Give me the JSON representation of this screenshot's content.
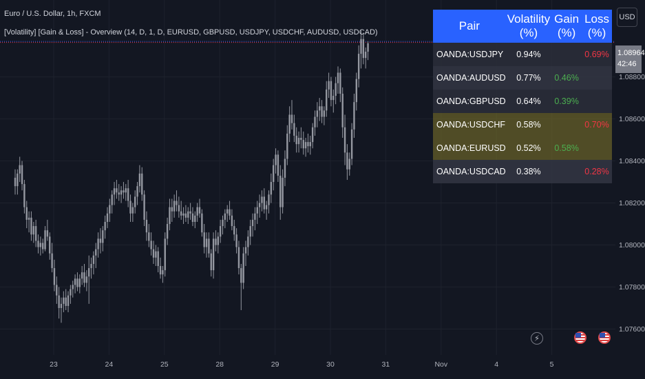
{
  "header": {
    "symbol_title": "Euro / U.S. Dollar, 1h, FXCM",
    "indicator_title": "[Volatility] [Gain & Loss] - Overview (14, D, 1, D, EURUSD, GBPUSD, USDJPY, USDCHF, AUDUSD, USDCAD)"
  },
  "currency_button": "USD",
  "price_tag": {
    "price": "1.08964",
    "countdown": "42:46"
  },
  "colors": {
    "background": "#131722",
    "candle": "#9598a1",
    "table_header": "#2962ff",
    "gain": "#4caf50",
    "loss": "#f23645",
    "highlight_row": "#766d28"
  },
  "table": {
    "headers": [
      "Pair",
      "Volatility (%)",
      "Gain (%)",
      "Loss (%)"
    ],
    "rows": [
      {
        "pair": "OANDA:USDJPY",
        "volatility": "0.94%",
        "gain": "",
        "loss": "0.69%",
        "highlight": false
      },
      {
        "pair": "OANDA:AUDUSD",
        "volatility": "0.77%",
        "gain": "0.46%",
        "loss": "",
        "highlight": false
      },
      {
        "pair": "OANDA:GBPUSD",
        "volatility": "0.64%",
        "gain": "0.39%",
        "loss": "",
        "highlight": false
      },
      {
        "pair": "OANDA:USDCHF",
        "volatility": "0.58%",
        "gain": "",
        "loss": "0.70%",
        "highlight": true
      },
      {
        "pair": "OANDA:EURUSD",
        "volatility": "0.52%",
        "gain": "0.58%",
        "loss": "",
        "highlight": true
      },
      {
        "pair": "OANDA:USDCAD",
        "volatility": "0.38%",
        "gain": "",
        "loss": "0.28%",
        "highlight": false
      }
    ]
  },
  "bottom_icons": [
    "lightning-icon",
    "us-flag-icon",
    "us-flag-icon"
  ],
  "chart_data": {
    "type": "candlestick",
    "ylim": [
      1.075,
      1.0912
    ],
    "y_ticks": [
      "1.08800",
      "1.08600",
      "1.08400",
      "1.08200",
      "1.08000",
      "1.07800",
      "1.07600"
    ],
    "y_tick_values": [
      1.088,
      1.086,
      1.084,
      1.082,
      1.08,
      1.078,
      1.076
    ],
    "x_ticks": [
      "23",
      "24",
      "25",
      "28",
      "29",
      "30",
      "31",
      "Nov",
      "4",
      "5"
    ],
    "x_tick_index": [
      0,
      24,
      48,
      72,
      96,
      120,
      144,
      168,
      192,
      216
    ],
    "last_price": 1.08964,
    "grid": true,
    "candles": [
      [
        1.0832,
        1.0836,
        1.0824,
        1.0828
      ],
      [
        1.0828,
        1.0836,
        1.0824,
        1.0834
      ],
      [
        1.0834,
        1.0842,
        1.083,
        1.0838
      ],
      [
        1.0838,
        1.084,
        1.0826,
        1.0829
      ],
      [
        1.0829,
        1.0831,
        1.0815,
        1.0818
      ],
      [
        1.0818,
        1.0821,
        1.0808,
        1.0812
      ],
      [
        1.0812,
        1.0816,
        1.0806,
        1.0813
      ],
      [
        1.0813,
        1.0816,
        1.0802,
        1.0805
      ],
      [
        1.0805,
        1.0811,
        1.0801,
        1.0809
      ],
      [
        1.0809,
        1.0812,
        1.0799,
        1.0802
      ],
      [
        1.0802,
        1.0805,
        1.0796,
        1.0799
      ],
      [
        1.0799,
        1.0804,
        1.0795,
        1.0801
      ],
      [
        1.0801,
        1.0803,
        1.0796,
        1.0798
      ],
      [
        1.0798,
        1.0809,
        1.0797,
        1.0807
      ],
      [
        1.0807,
        1.0812,
        1.0802,
        1.0804
      ],
      [
        1.0804,
        1.0806,
        1.0793,
        1.0796
      ],
      [
        1.0796,
        1.0801,
        1.0787,
        1.0789
      ],
      [
        1.0789,
        1.0793,
        1.0778,
        1.0781
      ],
      [
        1.0781,
        1.0785,
        1.0772,
        1.0776
      ],
      [
        1.0776,
        1.078,
        1.0765,
        1.077
      ],
      [
        1.077,
        1.0775,
        1.0763,
        1.0772
      ],
      [
        1.0772,
        1.0778,
        1.0768,
        1.0775
      ],
      [
        1.0775,
        1.0779,
        1.0769,
        1.0771
      ],
      [
        1.0771,
        1.0778,
        1.0768,
        1.0776
      ],
      [
        1.0776,
        1.0781,
        1.0772,
        1.0779
      ],
      [
        1.0779,
        1.0783,
        1.0775,
        1.0781
      ],
      [
        1.0781,
        1.0786,
        1.0777,
        1.0784
      ],
      [
        1.0784,
        1.0787,
        1.0778,
        1.078
      ],
      [
        1.078,
        1.0786,
        1.0777,
        1.0784
      ],
      [
        1.0784,
        1.079,
        1.0781,
        1.0787
      ],
      [
        1.0787,
        1.0791,
        1.078,
        1.0782
      ],
      [
        1.0782,
        1.0788,
        1.0778,
        1.0785
      ],
      [
        1.0785,
        1.0795,
        1.0772,
        1.0789
      ],
      [
        1.0789,
        1.0794,
        1.0784,
        1.0791
      ],
      [
        1.0791,
        1.0797,
        1.0786,
        1.0795
      ],
      [
        1.0795,
        1.0801,
        1.0789,
        1.0798
      ],
      [
        1.0798,
        1.0806,
        1.0794,
        1.0803
      ],
      [
        1.0803,
        1.0808,
        1.0796,
        1.0801
      ],
      [
        1.0801,
        1.0809,
        1.0797,
        1.0807
      ],
      [
        1.0807,
        1.0814,
        1.0803,
        1.0811
      ],
      [
        1.0811,
        1.0818,
        1.0808,
        1.0815
      ],
      [
        1.0815,
        1.0822,
        1.0811,
        1.0819
      ],
      [
        1.0819,
        1.0826,
        1.0815,
        1.0824
      ],
      [
        1.0824,
        1.083,
        1.0819,
        1.0827
      ],
      [
        1.0827,
        1.0831,
        1.0822,
        1.0825
      ],
      [
        1.0825,
        1.0829,
        1.0821,
        1.0824
      ],
      [
        1.0824,
        1.0828,
        1.082,
        1.0826
      ],
      [
        1.0826,
        1.083,
        1.0822,
        1.0825
      ],
      [
        1.0825,
        1.0829,
        1.0821,
        1.0827
      ],
      [
        1.0827,
        1.0831,
        1.0818,
        1.0821
      ],
      [
        1.0821,
        1.0824,
        1.0811,
        1.0815
      ],
      [
        1.0815,
        1.082,
        1.0811,
        1.0818
      ],
      [
        1.0818,
        1.0826,
        1.0815,
        1.0823
      ],
      [
        1.0823,
        1.083,
        1.0819,
        1.0828
      ],
      [
        1.0828,
        1.0838,
        1.0825,
        1.0834
      ],
      [
        1.0834,
        1.0837,
        1.0821,
        1.0824
      ],
      [
        1.0824,
        1.0826,
        1.0809,
        1.0812
      ],
      [
        1.0812,
        1.0816,
        1.0802,
        1.0806
      ],
      [
        1.0806,
        1.081,
        1.0799,
        1.0802
      ],
      [
        1.0802,
        1.0806,
        1.0795,
        1.0798
      ],
      [
        1.0798,
        1.0802,
        1.0791,
        1.0794
      ],
      [
        1.0794,
        1.08,
        1.079,
        1.0797
      ],
      [
        1.0797,
        1.0799,
        1.0787,
        1.079
      ],
      [
        1.079,
        1.0794,
        1.0784,
        1.0786
      ],
      [
        1.0786,
        1.079,
        1.0782,
        1.0788
      ],
      [
        1.0788,
        1.0806,
        1.0785,
        1.0803
      ],
      [
        1.0803,
        1.0813,
        1.08,
        1.081
      ],
      [
        1.081,
        1.0822,
        1.0807,
        1.0818
      ],
      [
        1.0818,
        1.0822,
        1.0811,
        1.0816
      ],
      [
        1.0816,
        1.0824,
        1.0813,
        1.0821
      ],
      [
        1.0821,
        1.0826,
        1.0816,
        1.0819
      ],
      [
        1.0819,
        1.0823,
        1.0813,
        1.0816
      ],
      [
        1.0816,
        1.0821,
        1.0812,
        1.0814
      ],
      [
        1.0814,
        1.0818,
        1.081,
        1.0815
      ],
      [
        1.0815,
        1.0819,
        1.0811,
        1.0813
      ],
      [
        1.0813,
        1.0818,
        1.081,
        1.0816
      ],
      [
        1.0816,
        1.082,
        1.0812,
        1.0815
      ],
      [
        1.0815,
        1.0818,
        1.0809,
        1.0811
      ],
      [
        1.0811,
        1.0816,
        1.0808,
        1.0814
      ],
      [
        1.0814,
        1.082,
        1.0811,
        1.0818
      ],
      [
        1.0818,
        1.0822,
        1.0813,
        1.0815
      ],
      [
        1.0815,
        1.0817,
        1.0804,
        1.0806
      ],
      [
        1.0806,
        1.081,
        1.0796,
        1.0799
      ],
      [
        1.0799,
        1.0806,
        1.0794,
        1.0803
      ],
      [
        1.0803,
        1.0806,
        1.0794,
        1.0796
      ],
      [
        1.0796,
        1.0798,
        1.0785,
        1.0788
      ],
      [
        1.0788,
        1.0806,
        1.0784,
        1.0803
      ],
      [
        1.0803,
        1.0807,
        1.0797,
        1.08
      ],
      [
        1.08,
        1.0806,
        1.0796,
        1.0804
      ],
      [
        1.0804,
        1.0812,
        1.0801,
        1.0809
      ],
      [
        1.0809,
        1.0814,
        1.0805,
        1.0812
      ],
      [
        1.0812,
        1.0817,
        1.0808,
        1.0815
      ],
      [
        1.0815,
        1.0819,
        1.0811,
        1.0817
      ],
      [
        1.0817,
        1.0821,
        1.0812,
        1.0814
      ],
      [
        1.0814,
        1.0817,
        1.0807,
        1.0809
      ],
      [
        1.0809,
        1.0812,
        1.0802,
        1.0805
      ],
      [
        1.0805,
        1.0808,
        1.0796,
        1.0799
      ],
      [
        1.0799,
        1.0802,
        1.0786,
        1.0789
      ],
      [
        1.0789,
        1.0791,
        1.0769,
        1.0782
      ],
      [
        1.0782,
        1.0799,
        1.0779,
        1.0796
      ],
      [
        1.0796,
        1.0802,
        1.079,
        1.0799
      ],
      [
        1.0799,
        1.0807,
        1.0795,
        1.0804
      ],
      [
        1.0804,
        1.0812,
        1.08,
        1.0809
      ],
      [
        1.0809,
        1.0815,
        1.0804,
        1.0812
      ],
      [
        1.0812,
        1.0818,
        1.0807,
        1.0815
      ],
      [
        1.0815,
        1.0821,
        1.081,
        1.0818
      ],
      [
        1.0818,
        1.0824,
        1.0813,
        1.082
      ],
      [
        1.082,
        1.0826,
        1.0816,
        1.0823
      ],
      [
        1.0823,
        1.0827,
        1.0815,
        1.0817
      ],
      [
        1.0817,
        1.0821,
        1.0812,
        1.0819
      ],
      [
        1.0819,
        1.0826,
        1.0815,
        1.0824
      ],
      [
        1.0824,
        1.0834,
        1.082,
        1.083
      ],
      [
        1.083,
        1.0841,
        1.0826,
        1.0838
      ],
      [
        1.0838,
        1.0846,
        1.0834,
        1.0843
      ],
      [
        1.0843,
        1.0845,
        1.083,
        1.0833
      ],
      [
        1.0833,
        1.0838,
        1.0812,
        1.0818
      ],
      [
        1.0818,
        1.0836,
        1.0815,
        1.0832
      ],
      [
        1.0832,
        1.0845,
        1.0828,
        1.0841
      ],
      [
        1.0841,
        1.0857,
        1.0838,
        1.0853
      ],
      [
        1.0853,
        1.0866,
        1.0849,
        1.0862
      ],
      [
        1.0862,
        1.0869,
        1.0855,
        1.0858
      ],
      [
        1.0858,
        1.0862,
        1.0849,
        1.0852
      ],
      [
        1.0852,
        1.0856,
        1.0844,
        1.0848
      ],
      [
        1.0848,
        1.0854,
        1.0844,
        1.0851
      ],
      [
        1.0851,
        1.0856,
        1.0846,
        1.085
      ],
      [
        1.085,
        1.0854,
        1.0843,
        1.0846
      ],
      [
        1.0846,
        1.0851,
        1.0842,
        1.0849
      ],
      [
        1.0849,
        1.0853,
        1.0844,
        1.0847
      ],
      [
        1.0847,
        1.0852,
        1.0843,
        1.0849
      ],
      [
        1.0849,
        1.0858,
        1.0846,
        1.0856
      ],
      [
        1.0856,
        1.0864,
        1.0852,
        1.0861
      ],
      [
        1.0861,
        1.0868,
        1.0856,
        1.0864
      ],
      [
        1.0864,
        1.087,
        1.0859,
        1.0866
      ],
      [
        1.0866,
        1.0869,
        1.0858,
        1.0861
      ],
      [
        1.0861,
        1.0866,
        1.0857,
        1.0864
      ],
      [
        1.0864,
        1.0878,
        1.0861,
        1.0874
      ],
      [
        1.0874,
        1.0882,
        1.087,
        1.0878
      ],
      [
        1.0878,
        1.088,
        1.0866,
        1.0869
      ],
      [
        1.0869,
        1.0874,
        1.0863,
        1.0871
      ],
      [
        1.0871,
        1.088,
        1.0867,
        1.0877
      ],
      [
        1.0877,
        1.0885,
        1.0872,
        1.0882
      ],
      [
        1.0882,
        1.0884,
        1.0868,
        1.0872
      ],
      [
        1.0872,
        1.0875,
        1.0851,
        1.0856
      ],
      [
        1.0856,
        1.0862,
        1.0838,
        1.0844
      ],
      [
        1.0844,
        1.0848,
        1.0831,
        1.0836
      ],
      [
        1.0836,
        1.0844,
        1.0833,
        1.0841
      ],
      [
        1.0841,
        1.0858,
        1.0838,
        1.0855
      ],
      [
        1.0855,
        1.0872,
        1.0851,
        1.0868
      ],
      [
        1.0868,
        1.0882,
        1.0864,
        1.0879
      ],
      [
        1.0879,
        1.0895,
        1.0875,
        1.0891
      ],
      [
        1.0891,
        1.0902,
        1.0884,
        1.0898
      ],
      [
        1.0898,
        1.0901,
        1.0886,
        1.0889
      ],
      [
        1.0889,
        1.0894,
        1.0884,
        1.0892
      ],
      [
        1.0892,
        1.0897,
        1.0888,
        1.0896
      ]
    ]
  }
}
